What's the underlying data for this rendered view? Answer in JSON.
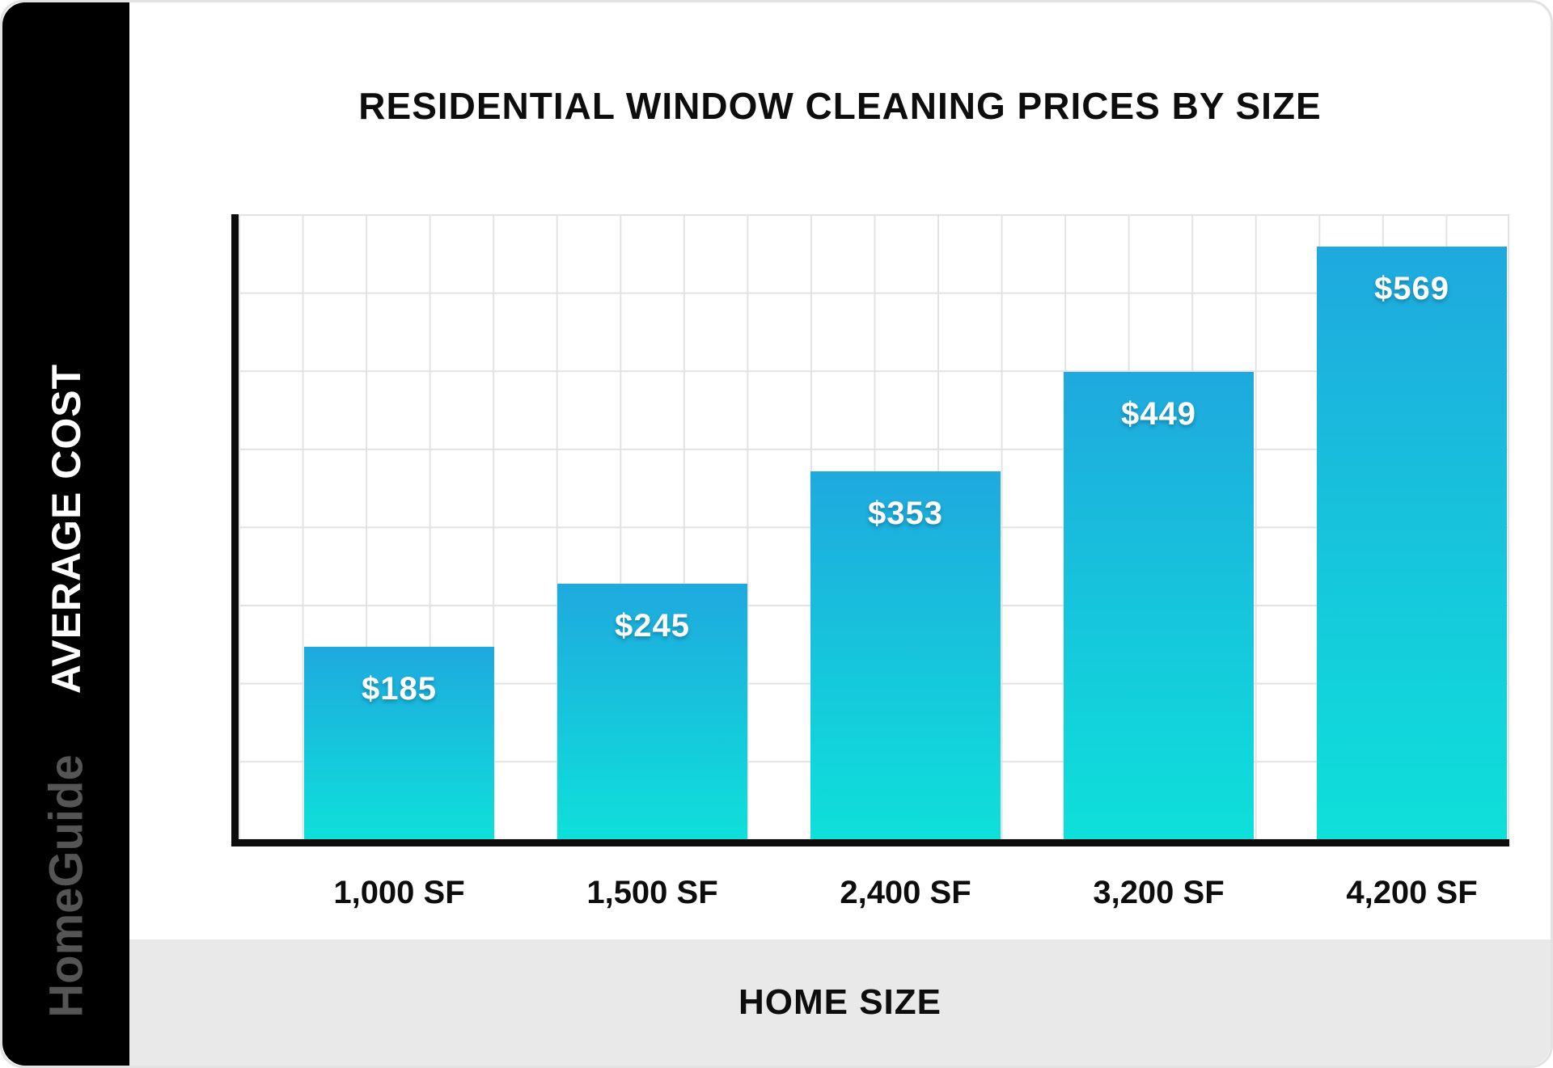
{
  "title": "RESIDENTIAL WINDOW CLEANING PRICES BY SIZE",
  "sidebar": {
    "y_axis_label": "AVERAGE COST",
    "brand": "HomeGuide"
  },
  "footer": {
    "x_axis_label": "HOME SIZE"
  },
  "chart_data": {
    "type": "bar",
    "title": "RESIDENTIAL WINDOW CLEANING PRICES BY SIZE",
    "xlabel": "HOME SIZE",
    "ylabel": "AVERAGE COST",
    "categories": [
      "1,000 SF",
      "1,500 SF",
      "2,400 SF",
      "3,200 SF",
      "4,200 SF"
    ],
    "values": [
      185,
      245,
      353,
      449,
      569
    ],
    "value_labels": [
      "$185",
      "$245",
      "$353",
      "$449",
      "$569"
    ],
    "ylim": [
      0,
      600
    ],
    "grid": true,
    "legend": "none",
    "colors": {
      "bar_gradient_top": "#1FA9DE",
      "bar_gradient_bottom": "#0EE0DA",
      "axis": "#0d0d0d",
      "grid_line": "#e2e2e2",
      "value_label_text": "#ffffff",
      "sidebar_bg": "#000000",
      "brand_text": "#555555",
      "footer_band_bg": "#e9e9e9"
    }
  }
}
